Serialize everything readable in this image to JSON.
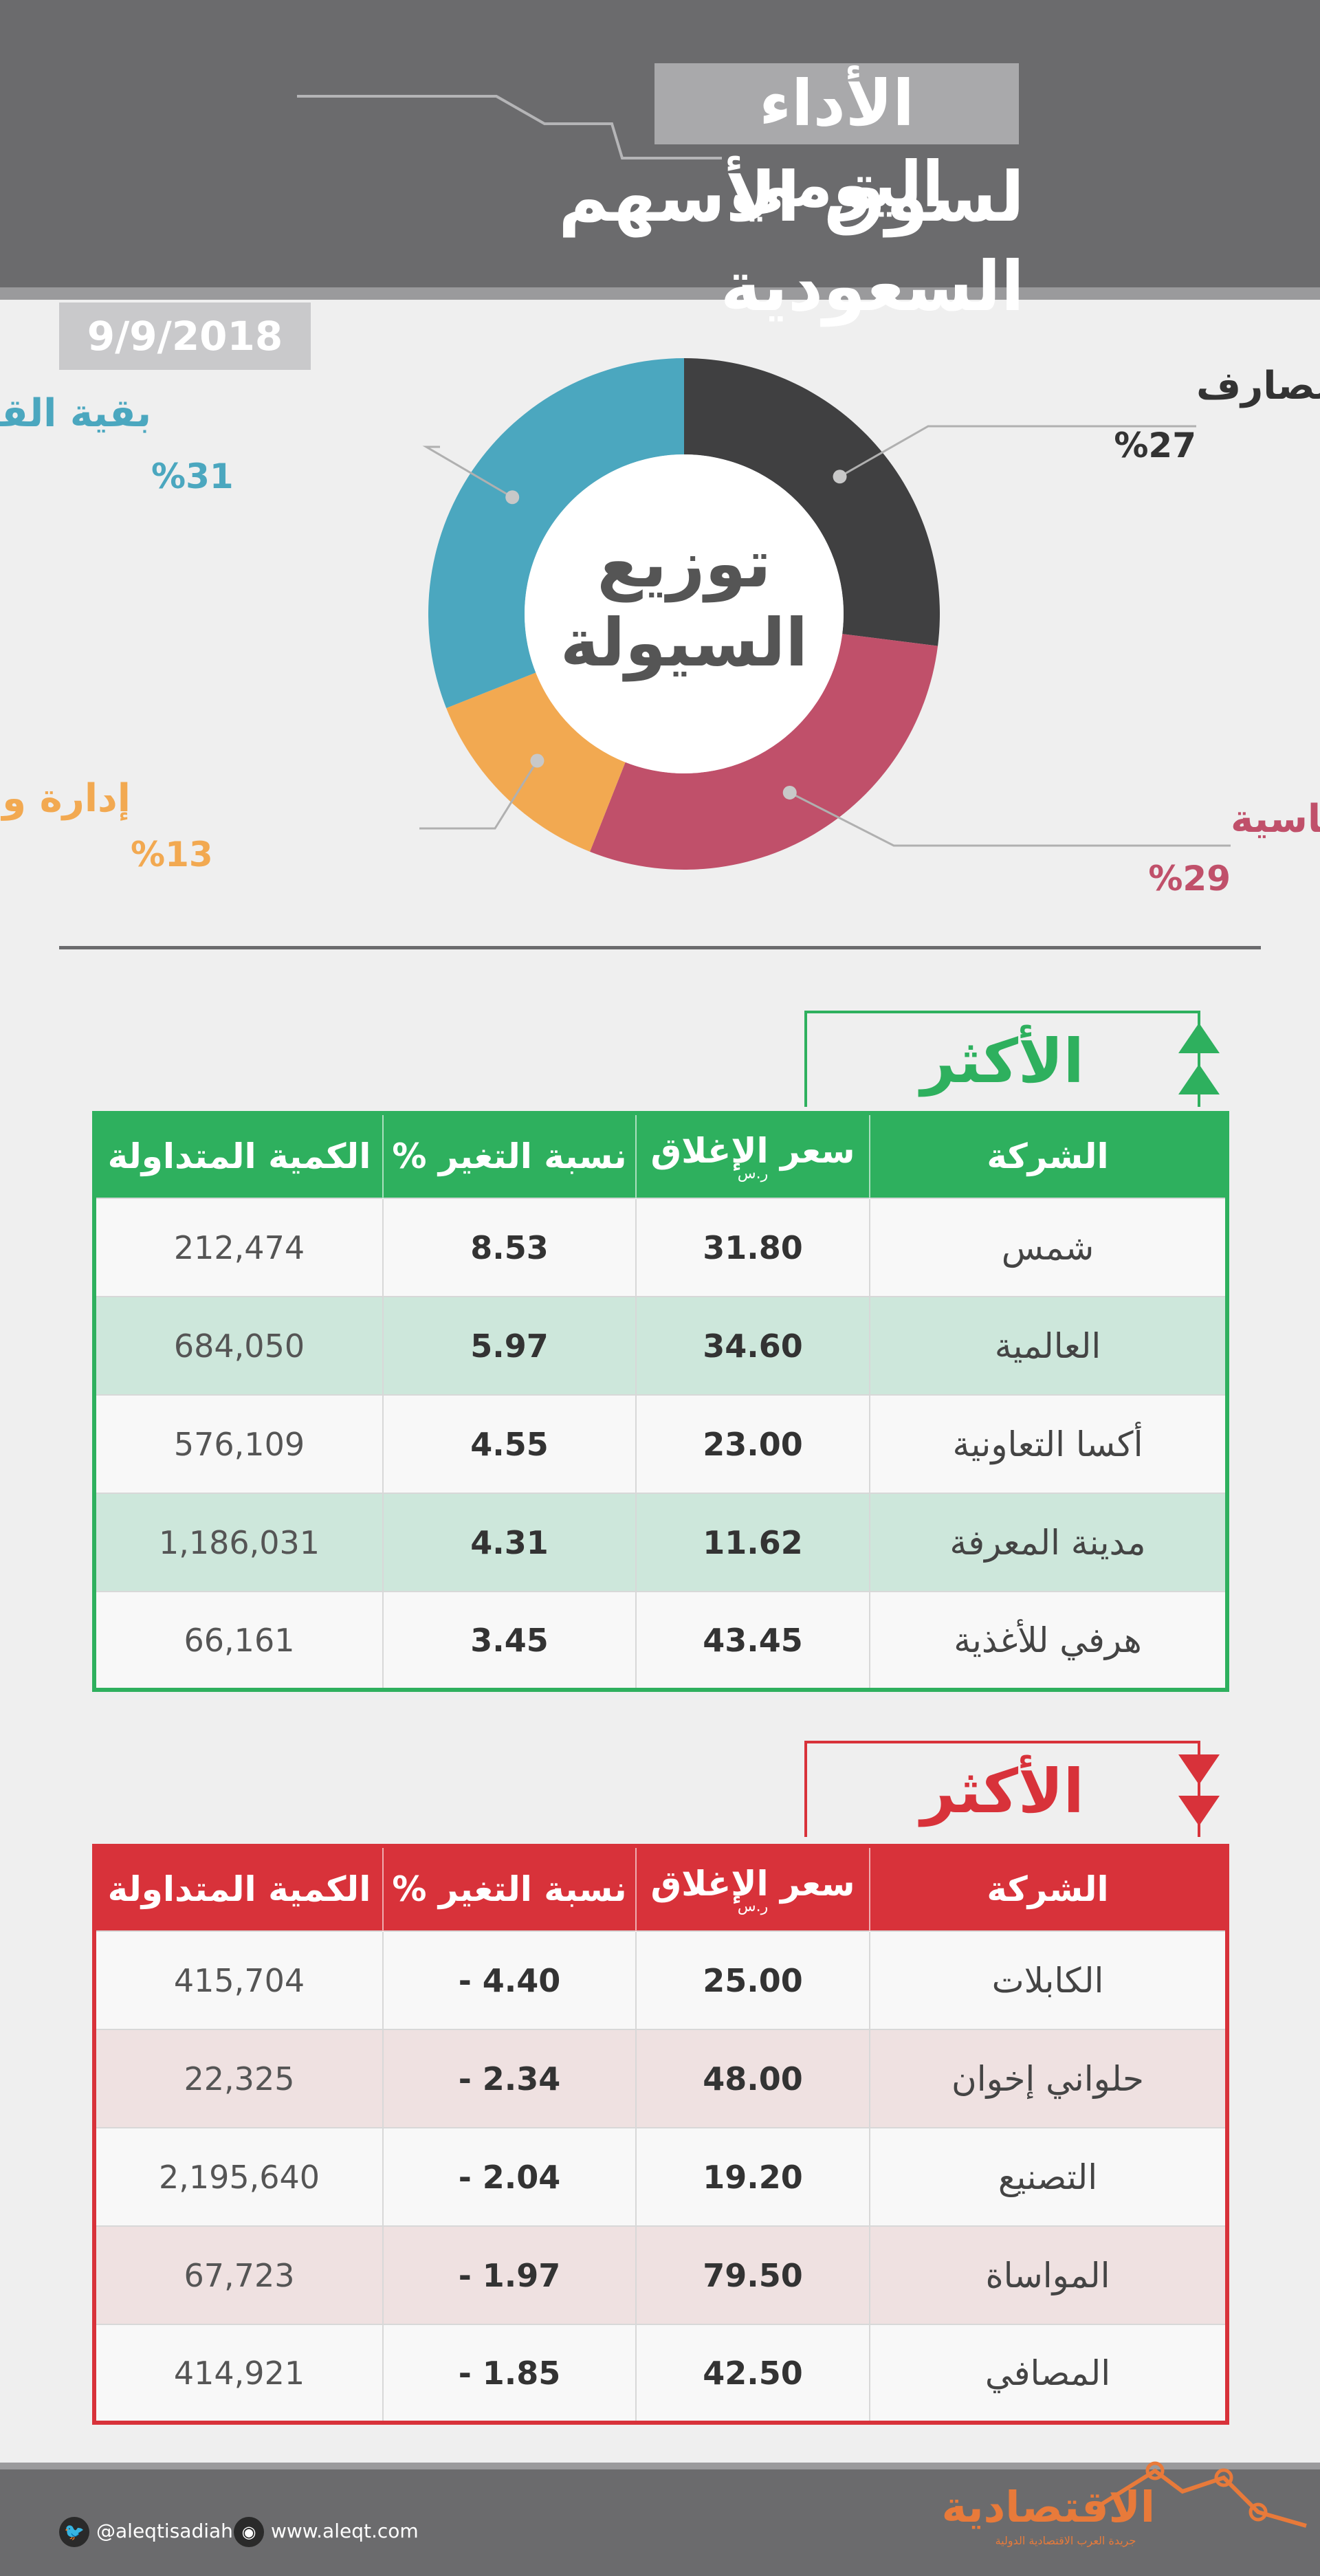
{
  "header": {
    "subtitle": "الأداء اليومي",
    "title": "لسوق الأسهم السعودية"
  },
  "date": "9/9/2018",
  "chart_data": {
    "type": "pie",
    "variant": "donut",
    "title": "توزيع السيولة",
    "title_lines": [
      "توزيع",
      "السيولة"
    ],
    "slices": [
      {
        "label": "المصارف",
        "value": 27,
        "display": "%27",
        "color": "#404041"
      },
      {
        "label": "المواد الأساسية",
        "value": 29,
        "display": "%29",
        "color": "#c0506a"
      },
      {
        "label": "إدارة وتطوير العقارات",
        "value": 13,
        "display": "%13",
        "color": "#f2a951"
      },
      {
        "label": "بقية القطاعات",
        "value": 31,
        "display": "%31",
        "color": "#4ba7bf"
      }
    ]
  },
  "gainers": {
    "title": "الأكثر ارتفاعا",
    "color": "#2eb05e",
    "columns": [
      "الشركة",
      "سعر الإغلاق",
      "نسبة التغير %",
      "الكمية المتداولة"
    ],
    "price_unit": "ر.س",
    "rows": [
      {
        "company": "شمس",
        "close": "31.80",
        "change": "8.53",
        "volume": "212,474"
      },
      {
        "company": "العالمية",
        "close": "34.60",
        "change": "5.97",
        "volume": "684,050"
      },
      {
        "company": "أكسا التعاونية",
        "close": "23.00",
        "change": "4.55",
        "volume": "576,109"
      },
      {
        "company": "مدينة المعرفة",
        "close": "11.62",
        "change": "4.31",
        "volume": "1,186,031"
      },
      {
        "company": "هرفي للأغذية",
        "close": "43.45",
        "change": "3.45",
        "volume": "66,161"
      }
    ]
  },
  "losers": {
    "title": "الأكثر انخفاضا",
    "color": "#d8323a",
    "columns": [
      "الشركة",
      "سعر الإغلاق",
      "نسبة التغير %",
      "الكمية المتداولة"
    ],
    "price_unit": "ر.س",
    "rows": [
      {
        "company": "الكابلات",
        "close": "25.00",
        "change": "4.40 -",
        "volume": "415,704"
      },
      {
        "company": "حلواني إخوان",
        "close": "48.00",
        "change": "2.34 -",
        "volume": "22,325"
      },
      {
        "company": "التصنيع",
        "close": "19.20",
        "change": "2.04 -",
        "volume": "2,195,640"
      },
      {
        "company": "المواساة",
        "close": "79.50",
        "change": "1.97 -",
        "volume": "67,723"
      },
      {
        "company": "المصافي",
        "close": "42.50",
        "change": "1.85 -",
        "volume": "414,921"
      }
    ]
  },
  "footer": {
    "twitter": "@aleqtisadiah",
    "website": "www.aleqt.com",
    "logo": "الاقتصادية",
    "logo_tagline": "جريدة العرب الاقتصادية الدولية",
    "twitter_icon": "twitter-bird-icon",
    "web_icon": "globe-icon"
  }
}
